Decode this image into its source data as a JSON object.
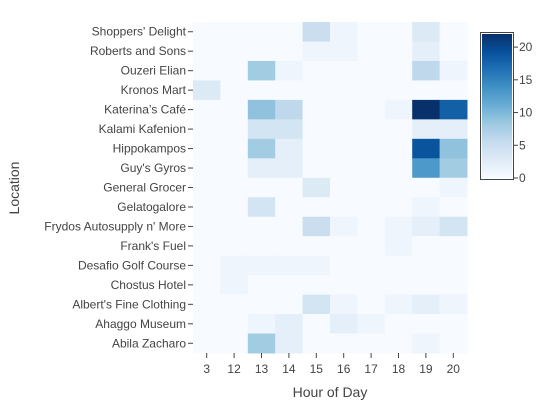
{
  "chart_data": {
    "type": "heatmap",
    "title": "",
    "xlabel": "Hour of Day",
    "ylabel": "Location",
    "x": [
      "3",
      "12",
      "13",
      "14",
      "15",
      "16",
      "17",
      "18",
      "19",
      "20"
    ],
    "y": [
      "Shoppers' Delight",
      "Roberts and Sons",
      "Ouzeri Elian",
      "Kronos Mart",
      "Katerina’s Café",
      "Kalami Kafenion",
      "Hippokampos",
      "Guy's Gyros",
      "General Grocer",
      "Gelatogalore",
      "Frydos Autosupply n' More",
      "Frank's Fuel",
      "Desafio Golf Course",
      "Chostus Hotel",
      "Albert's Fine Clothing",
      "Ahaggo Museum",
      "Abila Zacharo"
    ],
    "z": [
      [
        0,
        0,
        0,
        0,
        5,
        1,
        0,
        0,
        3,
        0
      ],
      [
        0,
        0,
        0,
        0,
        1,
        1,
        0,
        0,
        2,
        0
      ],
      [
        0,
        0,
        8,
        1,
        0,
        0,
        0,
        0,
        6,
        1
      ],
      [
        3,
        0,
        0,
        0,
        0,
        0,
        0,
        0,
        0,
        0
      ],
      [
        0,
        0,
        9,
        6,
        0,
        0,
        0,
        1,
        22,
        18
      ],
      [
        0,
        0,
        4,
        4,
        0,
        0,
        0,
        0,
        2,
        2
      ],
      [
        0,
        0,
        8,
        2,
        0,
        0,
        0,
        0,
        19,
        9
      ],
      [
        0,
        0,
        2,
        2,
        0,
        0,
        0,
        0,
        13,
        8
      ],
      [
        0,
        0,
        0,
        0,
        3,
        0,
        0,
        0,
        0,
        1
      ],
      [
        0,
        0,
        4,
        0,
        0,
        0,
        0,
        0,
        1,
        0
      ],
      [
        0,
        0,
        0,
        0,
        5,
        1,
        0,
        1,
        2,
        4
      ],
      [
        0,
        0,
        0,
        0,
        0,
        0,
        0,
        1,
        0,
        0
      ],
      [
        0,
        1,
        1,
        1,
        1,
        0,
        0,
        0,
        0,
        0
      ],
      [
        0,
        1,
        0,
        0,
        0,
        0,
        0,
        0,
        0,
        0
      ],
      [
        0,
        0,
        0,
        0,
        4,
        1,
        0,
        1,
        2,
        1
      ],
      [
        0,
        0,
        1,
        2,
        0,
        2,
        1,
        0,
        0,
        0
      ],
      [
        0,
        0,
        8,
        2,
        0,
        0,
        0,
        0,
        1,
        0
      ]
    ],
    "zmin": 0,
    "zmax": 22,
    "colorbar_ticks": [
      0,
      5,
      10,
      15,
      20
    ],
    "colorscale": [
      "#f7fbff",
      "#deebf7",
      "#c6dbef",
      "#9ecae1",
      "#6baed6",
      "#4292c6",
      "#2171b5",
      "#08519c",
      "#08306b"
    ],
    "grid": false,
    "legend": "colorbar-right"
  }
}
